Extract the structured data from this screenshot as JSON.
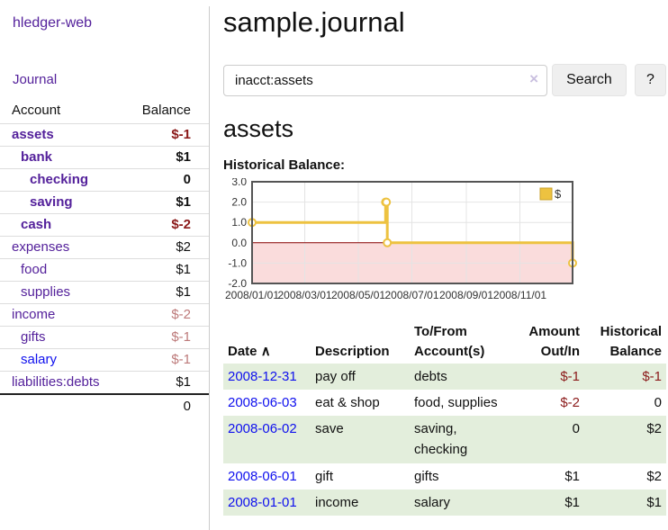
{
  "app": {
    "title": "hledger-web"
  },
  "sidebar": {
    "journal_link": "Journal",
    "accounts_header": {
      "account": "Account",
      "balance": "Balance"
    },
    "accounts": [
      {
        "name": "assets",
        "depth": 1,
        "in_query": true,
        "balance": "$-1",
        "balance_class": "b-neg-strong"
      },
      {
        "name": "bank",
        "depth": 2,
        "in_query": true,
        "balance": "$1",
        "balance_class": "b-pos-strong"
      },
      {
        "name": "checking",
        "depth": 3,
        "in_query": true,
        "balance": "0",
        "balance_class": "b-pos-strong"
      },
      {
        "name": "saving",
        "depth": 3,
        "in_query": true,
        "balance": "$1",
        "balance_class": "b-pos-strong"
      },
      {
        "name": "cash",
        "depth": 2,
        "in_query": true,
        "balance": "$-2",
        "balance_class": "b-neg-strong"
      },
      {
        "name": "expenses",
        "depth": 1,
        "in_query": false,
        "balance": "$2",
        "balance_class": "b-pos"
      },
      {
        "name": "food",
        "depth": 2,
        "in_query": false,
        "balance": "$1",
        "balance_class": "b-pos"
      },
      {
        "name": "supplies",
        "depth": 2,
        "in_query": false,
        "balance": "$1",
        "balance_class": "b-pos"
      },
      {
        "name": "income",
        "depth": 1,
        "in_query": false,
        "balance": "$-2",
        "balance_class": "b-neg-muted"
      },
      {
        "name": "gifts",
        "depth": 2,
        "in_query": false,
        "balance": "$-1",
        "balance_class": "b-neg-muted"
      },
      {
        "name": "salary",
        "depth": 2,
        "in_query": false,
        "link_blue": true,
        "balance": "$-1",
        "balance_class": "b-neg-muted"
      },
      {
        "name": "liabilities:debts",
        "depth": 1,
        "in_query": false,
        "balance": "$1",
        "balance_class": "b-pos"
      }
    ],
    "total": "0"
  },
  "main": {
    "title": "sample.journal",
    "account_heading": "assets",
    "chart_title": "Historical Balance:"
  },
  "search": {
    "value": "inacct:assets",
    "clear_icon": "×",
    "search_button": "Search",
    "help_button": "?"
  },
  "chart_data": {
    "type": "line",
    "step": true,
    "title": "Historical Balance",
    "legend": {
      "label": "$",
      "position": "top-right"
    },
    "x": [
      "2008-01-01",
      "2008-06-01",
      "2008-06-02",
      "2008-06-03",
      "2008-12-31"
    ],
    "y": [
      1,
      2,
      2,
      0,
      -1
    ],
    "x_range": [
      "2008-01-01",
      "2008-12-31"
    ],
    "ylim": [
      -2,
      3
    ],
    "yticks": [
      3,
      2,
      1,
      0,
      -1,
      -2
    ],
    "ytick_labels": [
      "3.0",
      "2.0",
      "1.0",
      "0.0",
      "-1.0",
      "-2.0"
    ],
    "xtick_labels": [
      "2008/01/01",
      "2008/03/01",
      "2008/05/01",
      "2008/07/01",
      "2008/09/01",
      "2008/11/01"
    ],
    "grid": true,
    "colors": {
      "series": "#edc240",
      "marker_fill": "#ffffff",
      "negative_region": "#fadcdc",
      "zero_line": "#8b0000",
      "grid": "#e4e4e4",
      "border": "#545454",
      "legend_border": "#c9a22b",
      "tick_text": "#333333"
    }
  },
  "register": {
    "headers": {
      "date": "Date",
      "sort_icon": "∧",
      "description": "Description",
      "accounts": "To/From Account(s)",
      "amount": "Amount Out/In",
      "balance": "Historical Balance"
    },
    "rows": [
      {
        "date": "2008-12-31",
        "description": "pay off",
        "accounts": "debts",
        "amount": "$-1",
        "amount_negative": true,
        "balance": "$-1",
        "balance_negative": true
      },
      {
        "date": "2008-06-03",
        "description": "eat & shop",
        "accounts": "food, supplies",
        "amount": "$-2",
        "amount_negative": true,
        "balance": "0",
        "balance_negative": false
      },
      {
        "date": "2008-06-02",
        "description": "save",
        "accounts": "saving, checking",
        "amount": "0",
        "amount_negative": false,
        "balance": "$2",
        "balance_negative": false
      },
      {
        "date": "2008-06-01",
        "description": "gift",
        "accounts": "gifts",
        "amount": "$1",
        "amount_negative": false,
        "balance": "$2",
        "balance_negative": false
      },
      {
        "date": "2008-01-01",
        "description": "income",
        "accounts": "salary",
        "amount": "$1",
        "amount_negative": false,
        "balance": "$1",
        "balance_negative": false
      }
    ]
  },
  "colors": {
    "link_purple": "#54219b",
    "link_blue": "#0f10ee",
    "negative_strong": "#8b1a1a",
    "negative_muted": "#bd7a7a",
    "row_shade_green": "#e3eedc"
  }
}
